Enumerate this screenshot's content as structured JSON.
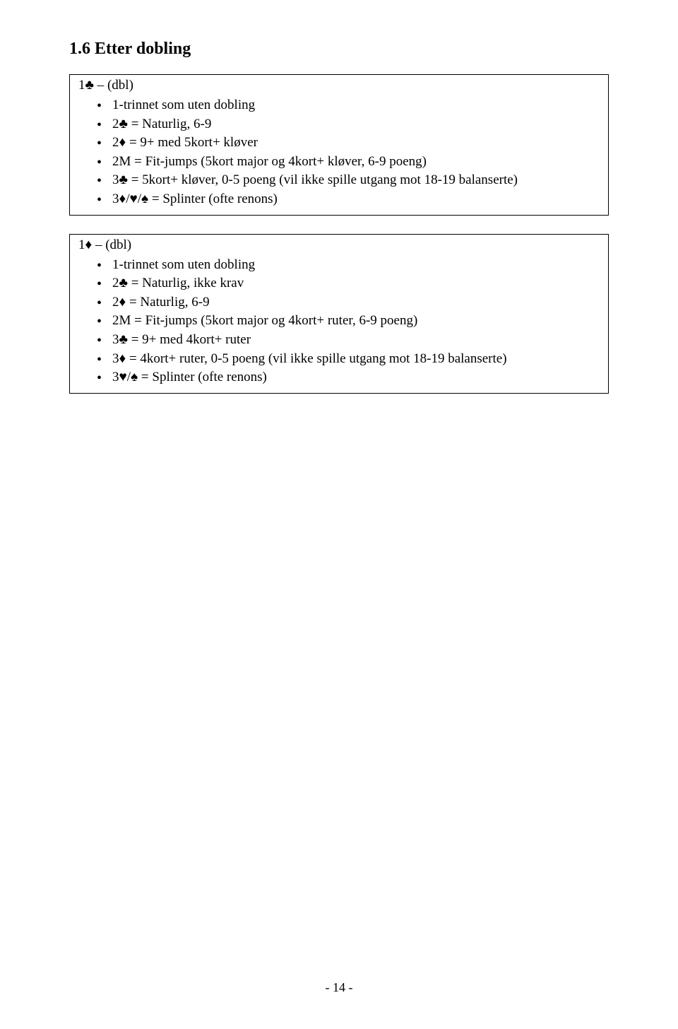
{
  "heading": "1.6 Etter dobling",
  "section1": {
    "title_prefix": "1",
    "title_suit": "♣",
    "title_suffix": " – (dbl)",
    "items": [
      {
        "text": "1-trinnet som uten dobling"
      },
      {
        "pre": "2",
        "suit": "♣",
        "suitClass": "club",
        "post": " = Naturlig, 6-9"
      },
      {
        "pre": "2",
        "suit": "♦",
        "suitClass": "diamond",
        "post": " = 9+ med 5kort+ kløver"
      },
      {
        "text": "2M = Fit-jumps (5kort major og 4kort+ kløver, 6-9 poeng)"
      },
      {
        "pre": "3",
        "suit": "♣",
        "suitClass": "club",
        "post": " = 5kort+ kløver, 0-5 poeng (vil ikke spille utgang mot 18-19 balanserte)"
      },
      {
        "pre": "3",
        "suitTriple": [
          "♦",
          "♥",
          "♠"
        ],
        "post": " = Splinter (ofte renons)"
      }
    ]
  },
  "section2": {
    "title_prefix": "1",
    "title_suit": "♦",
    "title_suffix": " – (dbl)",
    "items": [
      {
        "text": "1-trinnet som uten dobling"
      },
      {
        "pre": "2",
        "suit": "♣",
        "suitClass": "club",
        "post": " = Naturlig, ikke krav"
      },
      {
        "pre": "2",
        "suit": "♦",
        "suitClass": "diamond",
        "post": " = Naturlig, 6-9"
      },
      {
        "text": "2M = Fit-jumps (5kort major og 4kort+ ruter, 6-9 poeng)"
      },
      {
        "pre": "3",
        "suit": "♣",
        "suitClass": "club",
        "post": " = 9+ med 4kort+ ruter"
      },
      {
        "pre": "3",
        "suit": "♦",
        "suitClass": "diamond",
        "post": " = 4kort+ ruter, 0-5 poeng (vil ikke spille utgang mot 18-19 balanserte)"
      },
      {
        "pre": "3",
        "suitPair": [
          "♥",
          "♠"
        ],
        "post": " = Splinter (ofte renons)"
      }
    ]
  },
  "pageNumber": "- 14 -"
}
